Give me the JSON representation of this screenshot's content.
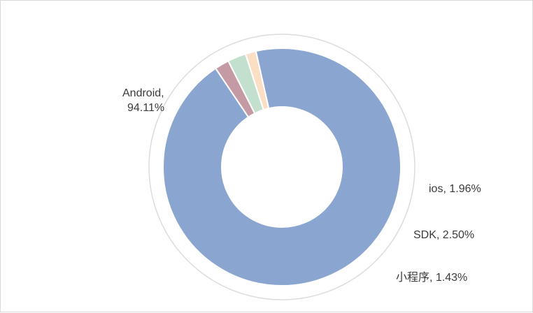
{
  "chart_data": {
    "type": "pie",
    "title": "",
    "series": [
      {
        "label": "Android",
        "value": 94.11,
        "display": "Android,",
        "display2": "94.11%",
        "color": "#8aa5cf"
      },
      {
        "label": "ios",
        "value": 1.96,
        "display": "ios, 1.96%",
        "color": "#c49aa5"
      },
      {
        "label": "SDK",
        "value": 2.5,
        "display": "SDK, 2.50%",
        "color": "#c3e0ce"
      },
      {
        "label": "小程序",
        "value": 1.43,
        "display": "小程序, 1.43%",
        "color": "#fbdfc4"
      }
    ]
  }
}
